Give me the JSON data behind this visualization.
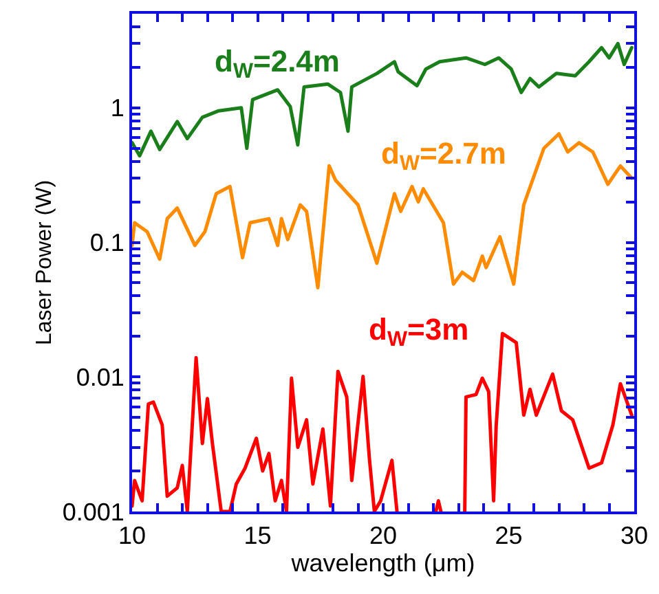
{
  "chart_data": {
    "type": "line",
    "xlabel": "wavelength (μm)",
    "ylabel": "Laser Power (W)",
    "log": "y",
    "xlim": [
      10,
      30
    ],
    "xticks": [
      10,
      {
        "value": 11,
        "label": null
      },
      {
        "value": 12,
        "label": null
      },
      {
        "value": 13,
        "label": null
      },
      {
        "value": 14,
        "label": null
      },
      15,
      {
        "value": 16,
        "label": null
      },
      {
        "value": 17,
        "label": null
      },
      {
        "value": 18,
        "label": null
      },
      {
        "value": 19,
        "label": null
      },
      20,
      {
        "value": 21,
        "label": null
      },
      {
        "value": 22,
        "label": null
      },
      {
        "value": 23,
        "label": null
      },
      {
        "value": 24,
        "label": null
      },
      25,
      {
        "value": 26,
        "label": null
      },
      {
        "value": 27,
        "label": null
      },
      {
        "value": 28,
        "label": null
      },
      {
        "value": 29,
        "label": null
      },
      30
    ],
    "ylim": [
      0.001,
      5
    ],
    "yticks": [
      0.001,
      {
        "value": 0.002,
        "label": null
      },
      {
        "value": 0.003,
        "label": null
      },
      {
        "value": 0.004,
        "label": null
      },
      {
        "value": 0.005,
        "label": null
      },
      {
        "value": 0.006,
        "label": null
      },
      {
        "value": 0.007,
        "label": null
      },
      {
        "value": 0.008,
        "label": null
      },
      {
        "value": 0.009,
        "label": null
      },
      0.01,
      {
        "value": 0.02,
        "label": null
      },
      {
        "value": 0.03,
        "label": null
      },
      {
        "value": 0.04,
        "label": null
      },
      {
        "value": 0.05,
        "label": null
      },
      {
        "value": 0.06,
        "label": null
      },
      {
        "value": 0.07,
        "label": null
      },
      {
        "value": 0.08,
        "label": null
      },
      {
        "value": 0.09,
        "label": null
      },
      0.1,
      {
        "value": 0.2,
        "label": null
      },
      {
        "value": 0.3,
        "label": null
      },
      {
        "value": 0.4,
        "label": null
      },
      {
        "value": 0.5,
        "label": null
      },
      {
        "value": 0.6,
        "label": null
      },
      {
        "value": 0.7,
        "label": null
      },
      {
        "value": 0.8,
        "label": null
      },
      {
        "value": 0.9,
        "label": null
      },
      1,
      {
        "value": 2,
        "label": null
      },
      {
        "value": 3,
        "label": null
      },
      {
        "value": 4,
        "label": null
      }
    ],
    "grid": false,
    "legend": false,
    "marker": "none",
    "line_style": "solid",
    "series": [
      {
        "name": "d$_{W}$=2.4m",
        "color": "#1a7f1a",
        "x": [
          10.0,
          10.3,
          10.75,
          11.1,
          11.8,
          12.2,
          12.8,
          13.45,
          14.35,
          14.57,
          14.8,
          15.8,
          16.3,
          16.6,
          16.85,
          17.8,
          18.3,
          18.6,
          18.75,
          19.75,
          20.45,
          20.6,
          21.35,
          21.7,
          22.25,
          23.3,
          24.05,
          24.6,
          25.1,
          25.5,
          25.85,
          26.2,
          26.9,
          27.65,
          28.2,
          28.7,
          29.0,
          29.35,
          29.6,
          29.9
        ],
        "values": [
          0.55,
          0.44,
          0.67,
          0.49,
          0.79,
          0.59,
          0.85,
          0.95,
          1.0,
          0.5,
          1.15,
          1.36,
          1.02,
          0.53,
          1.43,
          1.5,
          1.3,
          0.67,
          1.43,
          1.8,
          2.2,
          1.85,
          1.46,
          1.94,
          2.2,
          2.35,
          2.1,
          2.35,
          1.94,
          1.3,
          1.65,
          1.43,
          1.8,
          1.73,
          2.2,
          2.8,
          2.35,
          3.0,
          2.1,
          2.8
        ]
      },
      {
        "name": "d$_{W}$=2.7m",
        "color": "#ff8c00",
        "x": [
          10.0,
          10.1,
          10.6,
          11.1,
          11.4,
          11.8,
          12.5,
          12.9,
          13.35,
          13.9,
          14.4,
          14.7,
          15.45,
          15.8,
          15.95,
          16.2,
          16.7,
          16.95,
          17.4,
          17.85,
          18.1,
          19.0,
          19.75,
          20.45,
          20.7,
          21.15,
          21.4,
          21.6,
          22.4,
          22.8,
          23.15,
          23.6,
          23.95,
          24.1,
          24.65,
          25.2,
          25.6,
          26.4,
          27.0,
          27.35,
          27.8,
          28.35,
          28.95,
          29.45,
          29.9
        ],
        "values": [
          0.095,
          0.14,
          0.12,
          0.075,
          0.15,
          0.18,
          0.095,
          0.12,
          0.23,
          0.26,
          0.077,
          0.14,
          0.15,
          0.095,
          0.15,
          0.105,
          0.19,
          0.17,
          0.046,
          0.37,
          0.29,
          0.19,
          0.07,
          0.23,
          0.17,
          0.26,
          0.2,
          0.25,
          0.14,
          0.049,
          0.06,
          0.052,
          0.079,
          0.065,
          0.11,
          0.049,
          0.19,
          0.5,
          0.64,
          0.47,
          0.55,
          0.47,
          0.27,
          0.37,
          0.3
        ]
      },
      {
        "name": "d$_{W}$=3m",
        "color": "#ff0000",
        "x": [
          10.0,
          10.1,
          10.4,
          10.65,
          10.85,
          11.2,
          11.4,
          11.8,
          12.0,
          12.2,
          12.55,
          12.8,
          13.0,
          13.2,
          13.55,
          13.9,
          14.15,
          14.5,
          14.95,
          15.2,
          15.45,
          15.7,
          15.95,
          16.15,
          16.35,
          16.6,
          16.95,
          17.2,
          17.6,
          17.9,
          18.2,
          18.55,
          18.75,
          19.2,
          19.45,
          19.65,
          19.9,
          20.35,
          20.55,
          21.5,
          22.1,
          22.2,
          22.3,
          23.0,
          23.25,
          23.3,
          23.7,
          23.95,
          24.2,
          24.4,
          24.5,
          24.75,
          25.3,
          25.6,
          25.85,
          26.1,
          26.75,
          27.1,
          27.55,
          28.2,
          28.7,
          29.15,
          29.45,
          29.9
        ],
        "values": [
          0.0011,
          0.0017,
          0.0012,
          0.0063,
          0.0065,
          0.0044,
          0.0013,
          0.0015,
          0.0022,
          0.001,
          0.0139,
          0.0032,
          0.0069,
          0.0032,
          0.001,
          0.001,
          0.0016,
          0.0021,
          0.0035,
          0.002,
          0.0027,
          0.0012,
          0.0017,
          0.001,
          0.0098,
          0.003,
          0.0048,
          0.0016,
          0.0041,
          0.0011,
          0.011,
          0.0071,
          0.0017,
          0.0101,
          0.0025,
          0.001,
          0.0012,
          0.0024,
          0.001,
          null,
          0.001,
          0.0012,
          0.001,
          null,
          0.001,
          0.0071,
          0.0074,
          0.0098,
          0.0078,
          0.0012,
          0.0043,
          0.021,
          0.018,
          0.0052,
          0.0081,
          0.0052,
          0.0105,
          0.0056,
          0.0048,
          0.0021,
          0.0023,
          0.0044,
          0.0089,
          0.0052
        ]
      }
    ]
  }
}
